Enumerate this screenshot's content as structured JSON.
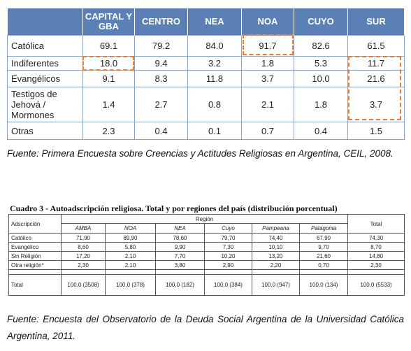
{
  "table1": {
    "headers": [
      "CAPITAL Y GBA",
      "CENTRO",
      "NEA",
      "NOA",
      "CUYO",
      "SUR"
    ],
    "rows": [
      [
        "Católica",
        "69.1",
        "79.2",
        "84.0",
        "91.7",
        "82.6",
        "61.5"
      ],
      [
        "Indiferentes",
        "18.0",
        "9.4",
        "3.2",
        "1.8",
        "5.3",
        "11.7"
      ],
      [
        "Evangélicos",
        "9.1",
        "8.3",
        "11.8",
        "3.7",
        "10.0",
        "21.6"
      ],
      [
        "Testigos de Jehová / Mormones",
        "1.4",
        "2.7",
        "0.8",
        "2.1",
        "1.8",
        "3.7"
      ],
      [
        "Otras",
        "2.3",
        "0.4",
        "0.1",
        "0.7",
        "0.4",
        "1.5"
      ]
    ]
  },
  "caption1": "Fuente: Primera Encuesta sobre Creencias y Actitudes Religiosas en Argentina, CEIL, 2008.",
  "table2": {
    "title": "Cuadro 3 - Autoadscripción religiosa. Total y por regiones del país (distribución porcentual)",
    "row_header": "Adscripción",
    "group_header": "Región",
    "total_header": "Total",
    "regions": [
      "AMBA",
      "NOA",
      "NEA",
      "Cuyo",
      "Pampeana",
      "Patagonia"
    ],
    "rows": [
      [
        "Católico",
        "71,90",
        "89,90",
        "78,60",
        "79,70",
        "74,40",
        "67,90",
        "74,30"
      ],
      [
        "Evangélico",
        "8,60",
        "5,80",
        "9,90",
        "7,30",
        "10,10",
        "9,70",
        "8,70"
      ],
      [
        "Sin Religión",
        "17,20",
        "2,10",
        "7,70",
        "10,20",
        "13,20",
        "21,60",
        "14,80"
      ],
      [
        "Otra religión*",
        "2,30",
        "2,10",
        "3,80",
        "2,90",
        "2,20",
        "0,70",
        "2,30"
      ],
      [
        "Total",
        "100,0 (3508)",
        "100,0 (378)",
        "100,0 (182)",
        "100,0 (384)",
        "100,0 (947)",
        "100,0 (134)",
        "100,0 (5533)"
      ]
    ]
  },
  "caption2": "Fuente: Encuesta del Observatorio de la Deuda Social Argentina de la Universidad Católica Argentina, 2011."
}
